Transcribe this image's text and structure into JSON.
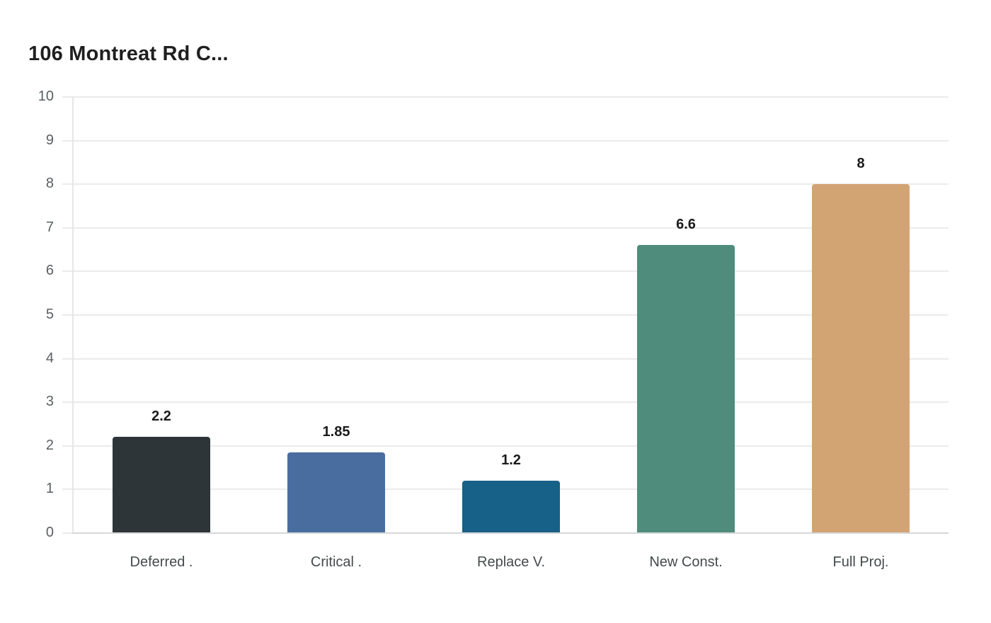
{
  "title": "106 Montreat Rd C...",
  "chart_data": {
    "type": "bar",
    "title": "106 Montreat Rd C...",
    "xlabel": "",
    "ylabel": "",
    "categories": [
      "Deferred .",
      "Critical .",
      "Replace V.",
      "New Const.",
      "Full Proj."
    ],
    "values": [
      2.2,
      1.85,
      1.2,
      6.6,
      8
    ],
    "value_labels": [
      "2.2",
      "1.85",
      "1.2",
      "6.6",
      "8"
    ],
    "colors": [
      "#2e3538",
      "#4a6da0",
      "#176087",
      "#4f8c7b",
      "#d2a474"
    ],
    "ylim": [
      0,
      10
    ],
    "yticks": [
      "0",
      "1",
      "2",
      "3",
      "4",
      "5",
      "6",
      "7",
      "8",
      "9",
      "10"
    ],
    "grid": true,
    "legend": "none"
  }
}
